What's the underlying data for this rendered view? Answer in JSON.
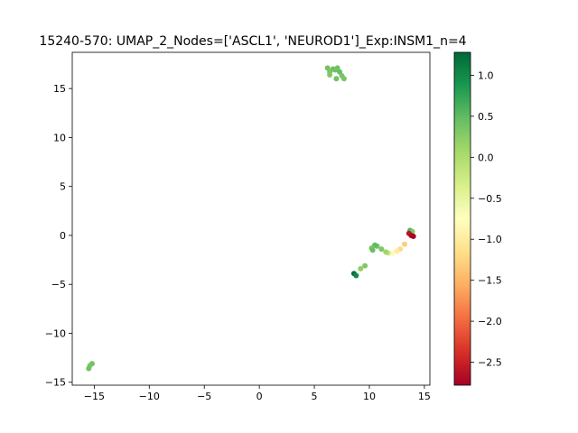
{
  "chart_data": {
    "type": "scatter",
    "title": "15240-570: UMAP_2_Nodes=['ASCL1', 'NEUROD1']_Exp:INSM1_n=4",
    "xlabel": "",
    "ylabel": "",
    "xlim": [
      -17.0,
      15.5
    ],
    "ylim": [
      -15.3,
      18.7
    ],
    "xticks": [
      -15,
      -10,
      -5,
      0,
      5,
      10,
      15
    ],
    "yticks": [
      -15,
      -10,
      -5,
      0,
      5,
      10,
      15
    ],
    "grid": false,
    "colormap": "RdYlGn",
    "colorbar": {
      "min": -2.78,
      "max": 1.28,
      "ticks": [
        1.0,
        0.5,
        0.0,
        -0.5,
        -1.0,
        -1.5,
        -2.0,
        -2.5
      ],
      "tick_labels": [
        "1.0",
        "0.5",
        "0.0",
        "−0.5",
        "−1.0",
        "−1.5",
        "−2.0",
        "−2.5"
      ]
    },
    "points": [
      {
        "x": 6.2,
        "y": 17.1,
        "c": 0.4
      },
      {
        "x": 6.7,
        "y": 17.0,
        "c": 0.45
      },
      {
        "x": 7.1,
        "y": 17.1,
        "c": 0.4
      },
      {
        "x": 6.4,
        "y": 16.7,
        "c": 0.35
      },
      {
        "x": 6.9,
        "y": 16.9,
        "c": 0.4
      },
      {
        "x": 7.3,
        "y": 16.7,
        "c": 0.45
      },
      {
        "x": 6.4,
        "y": 16.4,
        "c": 0.3
      },
      {
        "x": 7.5,
        "y": 16.3,
        "c": 0.35
      },
      {
        "x": 7.0,
        "y": 16.0,
        "c": 0.4
      },
      {
        "x": 7.7,
        "y": 16.0,
        "c": 0.35
      },
      {
        "x": 13.7,
        "y": 0.5,
        "c": 0.6
      },
      {
        "x": 13.9,
        "y": 0.4,
        "c": 0.3
      },
      {
        "x": 13.6,
        "y": 0.2,
        "c": -2.6
      },
      {
        "x": 13.8,
        "y": 0.0,
        "c": -2.7
      },
      {
        "x": 14.0,
        "y": -0.1,
        "c": -2.75
      },
      {
        "x": 13.2,
        "y": -0.9,
        "c": -1.3
      },
      {
        "x": 12.8,
        "y": -1.4,
        "c": -1.2
      },
      {
        "x": 12.5,
        "y": -1.6,
        "c": -1.0
      },
      {
        "x": 12.1,
        "y": -1.8,
        "c": -0.8
      },
      {
        "x": 11.7,
        "y": -1.8,
        "c": -0.2
      },
      {
        "x": 11.5,
        "y": -1.7,
        "c": 0.1
      },
      {
        "x": 11.1,
        "y": -1.4,
        "c": 0.3
      },
      {
        "x": 10.7,
        "y": -1.1,
        "c": 0.4
      },
      {
        "x": 10.5,
        "y": -1.0,
        "c": 0.5
      },
      {
        "x": 10.2,
        "y": -1.3,
        "c": 0.35
      },
      {
        "x": 10.3,
        "y": -1.5,
        "c": 0.45
      },
      {
        "x": 9.6,
        "y": -3.1,
        "c": 0.3
      },
      {
        "x": 9.2,
        "y": -3.4,
        "c": 0.2
      },
      {
        "x": 8.6,
        "y": -3.9,
        "c": 1.2
      },
      {
        "x": 8.8,
        "y": -4.1,
        "c": 1.0
      },
      {
        "x": -15.2,
        "y": -13.1,
        "c": 0.4
      },
      {
        "x": -15.4,
        "y": -13.3,
        "c": 0.35
      },
      {
        "x": -15.5,
        "y": -13.6,
        "c": 0.4
      }
    ]
  }
}
